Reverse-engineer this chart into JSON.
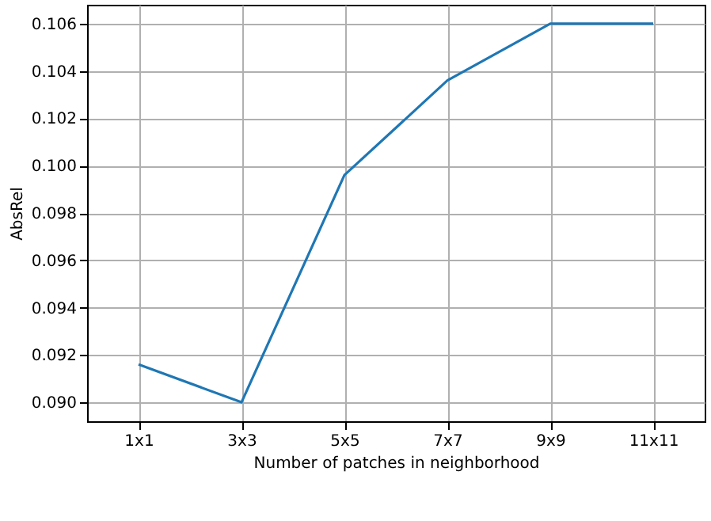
{
  "chart_data": {
    "type": "line",
    "xlabel": "Number of patches in neighborhood",
    "ylabel": "AbsRel",
    "categories": [
      "1x1",
      "3x3",
      "5x5",
      "7x7",
      "9x9",
      "11x11"
    ],
    "series": [
      {
        "color": "#1f77b4",
        "values": [
          0.0916,
          0.09,
          0.0996,
          0.1036,
          0.106,
          0.106
        ]
      }
    ],
    "ylim": [
      0.0892,
      0.1068
    ],
    "yticks": [
      {
        "value": 0.09,
        "label": "0.090"
      },
      {
        "value": 0.092,
        "label": "0.092"
      },
      {
        "value": 0.094,
        "label": "0.094"
      },
      {
        "value": 0.096,
        "label": "0.096"
      },
      {
        "value": 0.098,
        "label": "0.098"
      },
      {
        "value": 0.1,
        "label": "0.100"
      },
      {
        "value": 0.102,
        "label": "0.102"
      },
      {
        "value": 0.104,
        "label": "0.104"
      },
      {
        "value": 0.106,
        "label": "0.106"
      }
    ],
    "grid": true,
    "marker": "none",
    "line_style": "solid"
  }
}
